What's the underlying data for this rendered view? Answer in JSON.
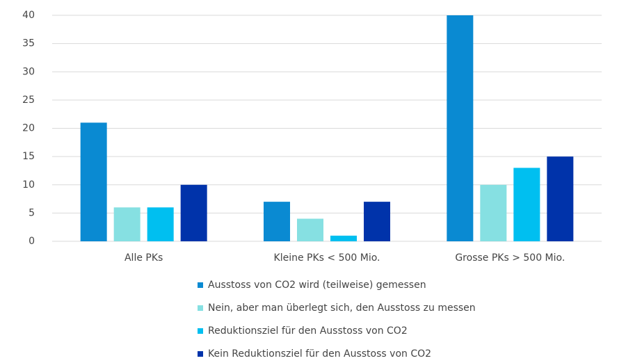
{
  "chart_data": {
    "type": "bar",
    "categories": [
      "Alle PKs",
      "Kleine PKs < 500 Mio.",
      "Grosse PKs > 500 Mio."
    ],
    "series": [
      {
        "name": "Ausstoss von CO2 wird (teilweise) gemessen",
        "color": "#0a8ad2",
        "values": [
          21,
          7,
          40
        ]
      },
      {
        "name": "Nein, aber man überlegt sich, den Ausstoss zu messen",
        "color": "#86e0e2",
        "values": [
          6,
          4,
          10
        ]
      },
      {
        "name": "Reduktionsziel für den Ausstoss von CO2",
        "color": "#00bff0",
        "values": [
          6,
          1,
          13
        ]
      },
      {
        "name": "Kein Reduktionsziel für den Ausstoss von CO2",
        "color": "#0033aa",
        "values": [
          10,
          7,
          15
        ]
      }
    ],
    "ylim": [
      0,
      40
    ],
    "yticks": [
      0,
      5,
      10,
      15,
      20,
      25,
      30,
      35,
      40
    ],
    "grid": true
  }
}
